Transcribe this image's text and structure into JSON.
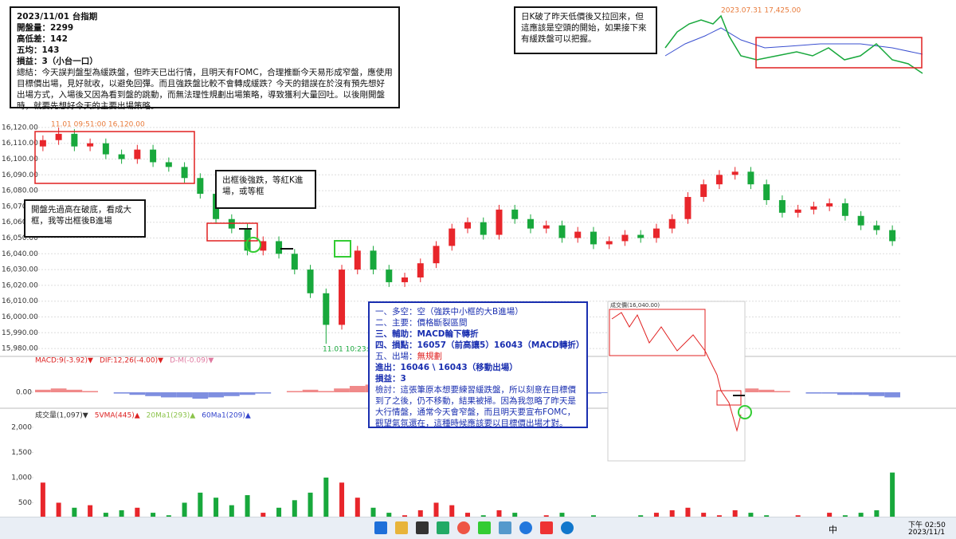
{
  "chart_data": [
    {
      "type": "candlestick",
      "open": [
        16108,
        16112,
        16116,
        16108,
        16110,
        16103,
        16100,
        16106,
        16098,
        16095,
        16088,
        16078,
        16062,
        16056,
        16042,
        16048,
        16040,
        16030,
        16015,
        15995,
        16030,
        16042,
        16030,
        16022,
        16025,
        16034,
        16045,
        16056,
        16060,
        16052,
        16068,
        16062,
        16056,
        16058,
        16050,
        16054,
        16046,
        16048,
        16052,
        16050,
        16056,
        16062,
        16076,
        16084,
        16090,
        16092,
        16084,
        16074,
        16066,
        16068,
        16070,
        16072,
        16064,
        16058,
        16055
      ],
      "high": [
        16115,
        16120,
        16119,
        16113,
        16113,
        16106,
        16109,
        16109,
        16101,
        16098,
        16091,
        16081,
        16065,
        16059,
        16051,
        16051,
        16043,
        16033,
        16018,
        16033,
        16045,
        16045,
        16033,
        16028,
        16037,
        16048,
        16059,
        16063,
        16063,
        16071,
        16071,
        16065,
        16061,
        16061,
        16057,
        16057,
        16051,
        16055,
        16055,
        16059,
        16065,
        16079,
        16087,
        16093,
        16095,
        16095,
        16087,
        16077,
        16071,
        16073,
        16075,
        16075,
        16067,
        16061,
        16058
      ],
      "low": [
        16105,
        16109,
        16105,
        16105,
        16100,
        16097,
        16097,
        16095,
        16092,
        16085,
        16075,
        16059,
        16053,
        16039,
        16039,
        16037,
        16027,
        16012,
        15983,
        15992,
        16027,
        16027,
        16019,
        16019,
        16022,
        16031,
        16042,
        16053,
        16049,
        16049,
        16059,
        16053,
        16053,
        16047,
        16047,
        16043,
        16043,
        16045,
        16047,
        16047,
        16053,
        16059,
        16073,
        16081,
        16087,
        16081,
        16071,
        16063,
        16063,
        16065,
        16067,
        16061,
        16055,
        16052,
        16045
      ],
      "close": [
        16112,
        16116,
        16108,
        16110,
        16103,
        16100,
        16106,
        16098,
        16095,
        16088,
        16078,
        16062,
        16056,
        16042,
        16048,
        16040,
        16030,
        16015,
        15995,
        16030,
        16042,
        16030,
        16022,
        16025,
        16034,
        16045,
        16056,
        16060,
        16052,
        16068,
        16062,
        16056,
        16058,
        16050,
        16054,
        16046,
        16048,
        16052,
        16050,
        16056,
        16062,
        16076,
        16084,
        16090,
        16092,
        16084,
        16074,
        16066,
        16068,
        16070,
        16072,
        16064,
        16058,
        16055,
        16048
      ],
      "up_color": "#e8262b",
      "down_color": "#18a83c",
      "ylim": [
        15975,
        16125
      ],
      "yticks": [
        {
          "value": 15980,
          "label": "15,980.00"
        },
        {
          "value": 15990,
          "label": "15,990.00"
        },
        {
          "value": 16000,
          "label": "16,000.00"
        },
        {
          "value": 16010,
          "label": "16,010.00"
        },
        {
          "value": 16020,
          "label": "16,020.00"
        },
        {
          "value": 16030,
          "label": "16,030.00"
        },
        {
          "value": 16040,
          "label": "16,040.00"
        },
        {
          "value": 16050,
          "label": "16,050.00"
        },
        {
          "value": 16060,
          "label": "16,060.00"
        },
        {
          "value": 16070,
          "label": "16,070.00"
        },
        {
          "value": 16080,
          "label": "16,080.00"
        },
        {
          "value": 16090,
          "label": "16,090.00"
        },
        {
          "value": 16100,
          "label": "16,100.00"
        },
        {
          "value": 16110,
          "label": "16,110.00"
        },
        {
          "value": 16120,
          "label": "16,120.00"
        }
      ],
      "grid": true,
      "annotations": [
        "11.01 09:51:00  16,120.00",
        "11.01 10:23:0"
      ]
    },
    {
      "type": "macd",
      "header": [
        {
          "text": "MACD:9(-3.92)▼",
          "color": "#d22"
        },
        {
          "text": "DIF:12,26(-4.00)▼",
          "color": "#d22"
        },
        {
          "text": "D-M(-0.09)▼",
          "color": "#e07aa0"
        }
      ],
      "values": [
        1,
        1.5,
        1,
        0.5,
        0,
        -0.5,
        -1,
        -1.5,
        -2,
        -2,
        -2.5,
        -2,
        -1.5,
        -1,
        -0.5,
        0,
        0.5,
        1,
        0.5,
        1.5,
        2.5,
        3,
        2.5,
        2,
        1,
        0.5,
        0,
        -0.5,
        -0.5,
        0,
        0.5,
        0.5,
        0,
        -0.3,
        -0.5,
        -0.5,
        -0.3,
        0,
        0.3,
        0.5,
        1,
        1.5,
        2,
        2.5,
        2,
        1.5,
        1,
        0.5,
        0,
        -0.5,
        -0.5,
        -1,
        -1,
        -1.5,
        -2
      ],
      "pos_color": "#f08a8a",
      "neg_color": "#7f8fe0",
      "ylim": [
        -5,
        10
      ],
      "yticks": [
        {
          "value": 0,
          "label": "0.00"
        }
      ]
    },
    {
      "type": "volume",
      "header": [
        {
          "text": "成交量(1,097)▼",
          "color": "#333"
        },
        {
          "text": "5VMA(445)▲",
          "color": "#d22"
        },
        {
          "text": "20Ma1(293)▲",
          "color": "#8bc34a"
        },
        {
          "text": "60Ma1(209)▲",
          "color": "#3344cc"
        }
      ],
      "values": [
        900,
        500,
        400,
        450,
        300,
        350,
        400,
        300,
        250,
        500,
        700,
        600,
        450,
        650,
        300,
        400,
        550,
        700,
        1000,
        900,
        600,
        400,
        300,
        250,
        350,
        500,
        450,
        300,
        250,
        350,
        300,
        200,
        250,
        300,
        200,
        250,
        200,
        200,
        250,
        300,
        350,
        400,
        300,
        250,
        350,
        300,
        250,
        200,
        250,
        200,
        300,
        250,
        300,
        350,
        1100
      ],
      "ylim": [
        0,
        2300
      ],
      "yticks": [
        500,
        {
          "value": 1000,
          "label": "1,000"
        },
        {
          "value": 1500,
          "label": "1,500"
        },
        {
          "value": 2000,
          "label": "2,000"
        }
      ]
    }
  ],
  "notes": {
    "summary": {
      "title": "2023/11/01 台指期",
      "lines": [
        "開盤量：2299",
        "高低差：142",
        "五均：143",
        "損益：3（小台一口）"
      ],
      "text": "總結：今天誤判盤型為緩跌盤，但昨天已出行情，且明天有FOMC，合理推斷今天易形成窄盤，應使用目標價出場，見好就收，以避免回彈。而且強跌盤比較不會轉成緩跌？今天的錯誤在於沒有預先想好出場方式，入場後又因為看到盤的跳動，而無法理性規劃出場策略，導致獲利大量回吐。以後剛開盤時，就要先想好今天的主要出場策略。"
    },
    "daily": "日K破了昨天低價後又拉回來，但這應該是空頭的開始，如果接下來有緩跌盤可以把握。",
    "open_note": "開盤先過高在破底，看成大框，我等出框後B進場",
    "break_note": "出框後強跌，等紅K進場，或等框",
    "plan": {
      "lines": [
        "一、多空：空（強跌中小框的大B進場）",
        "二、主要：價格斷裂區間",
        "三、輔助：MACD輪下轉折",
        "四、損點：16057（前高讓5）16043（MACD轉折）"
      ],
      "exit_label": "五、出場：",
      "exit_value": "無規劃",
      "lines2": [
        "進出：16046 \\ 16043（移動出場）",
        "損益：3"
      ],
      "review": "檢討：這張筆原本想要練習緩跌盤，所以刻意在目標價到了之後，仍不移動，結果被掃。因為我忽略了昨天是大行情盤，通常今天會窄盤，而且明天要宣布FOMC，觀望氣氛還在，這種時候應該要以目標價出場才對。"
    },
    "daily_label": "2023.07.31  17,425.00",
    "inset_label": "成交價(16,040.00)"
  },
  "taskbar": {
    "ime": "中",
    "time": "下午 02:50",
    "date": "2023/11/1"
  }
}
